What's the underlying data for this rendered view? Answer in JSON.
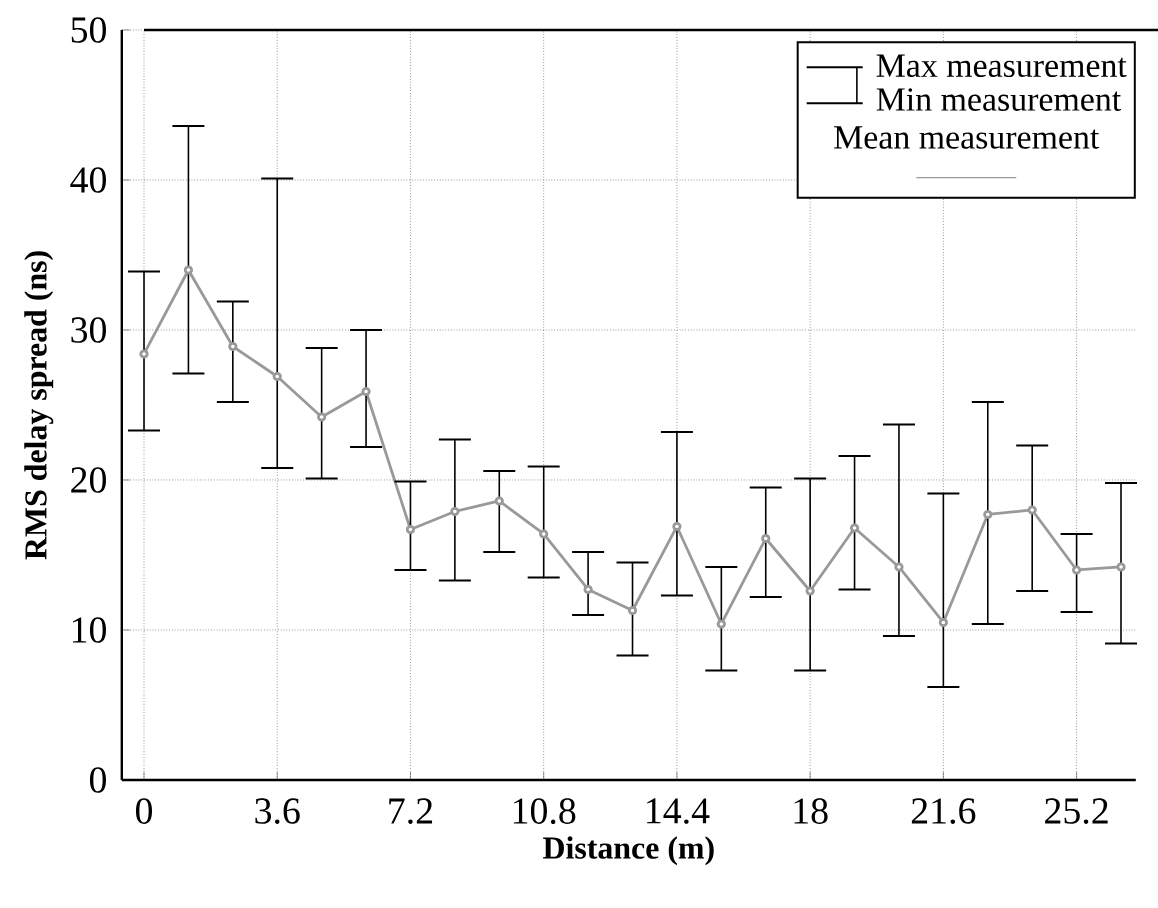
{
  "chart_data": {
    "type": "line",
    "xlabel": "Distance (m)",
    "ylabel": "RMS delay spread (ns)",
    "x": [
      0,
      1.2,
      2.4,
      3.6,
      4.8,
      6.0,
      7.2,
      8.4,
      9.6,
      10.8,
      12.0,
      13.2,
      14.4,
      15.6,
      16.8,
      18.0,
      19.2,
      20.4,
      21.6,
      22.8,
      24.0,
      25.2,
      26.4
    ],
    "series": [
      {
        "name": "Mean measurement",
        "color": "#999999",
        "values": [
          28.4,
          34.0,
          28.9,
          26.9,
          24.2,
          25.9,
          16.7,
          17.9,
          18.6,
          16.4,
          12.7,
          11.3,
          16.9,
          10.4,
          16.1,
          12.6,
          16.8,
          14.2,
          10.5,
          17.7,
          18.0,
          14.0,
          14.2
        ],
        "errors": [
          [
            23.3,
            33.9
          ],
          [
            27.1,
            43.6
          ],
          [
            25.2,
            31.9
          ],
          [
            20.8,
            40.1
          ],
          [
            20.1,
            28.8
          ],
          [
            22.2,
            30.0
          ],
          [
            14.0,
            19.9
          ],
          [
            13.3,
            22.7
          ],
          [
            15.2,
            20.6
          ],
          [
            13.5,
            20.9
          ],
          [
            11.0,
            15.2
          ],
          [
            8.3,
            14.5
          ],
          [
            12.3,
            23.2
          ],
          [
            7.3,
            14.2
          ],
          [
            12.2,
            19.5
          ],
          [
            7.3,
            20.1
          ],
          [
            12.7,
            21.6
          ],
          [
            9.6,
            23.7
          ],
          [
            6.2,
            19.1
          ],
          [
            10.4,
            25.2
          ],
          [
            12.6,
            22.3
          ],
          [
            11.2,
            16.4
          ],
          [
            9.1,
            19.8
          ]
        ]
      }
    ],
    "annotations": [
      "Max measurement",
      "Min measurement"
    ],
    "xlim": [
      -0.6,
      26.8
    ],
    "xticks": [
      0,
      3.6,
      7.2,
      10.8,
      14.4,
      18,
      21.6,
      25.2
    ],
    "ylim": [
      0,
      50
    ],
    "yticks": [
      0,
      10,
      20,
      30,
      40,
      50
    ],
    "grid": true,
    "legend": "top right",
    "marker": "circle",
    "line_style": "solid"
  }
}
